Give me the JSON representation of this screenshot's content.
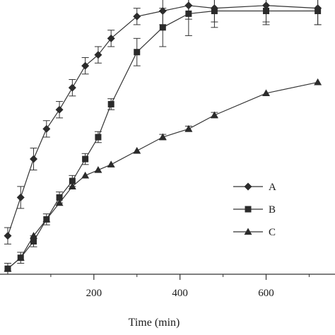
{
  "chart_data": {
    "type": "line",
    "title": "",
    "xlabel": "Time (min)",
    "ylabel": "",
    "xlim": [
      -18,
      760
    ],
    "ylim": [
      0,
      100
    ],
    "grid": false,
    "legend_position": "center-right",
    "x_ticks": [
      200,
      400,
      600
    ],
    "x_tick_labels": [
      "200",
      "400",
      "600"
    ],
    "series": [
      {
        "name": "A",
        "marker": "diamond",
        "x": [
          0,
          30,
          60,
          90,
          120,
          150,
          180,
          210,
          240,
          300,
          360,
          420,
          480,
          600,
          720
        ],
        "y": [
          14,
          28,
          42,
          53,
          60,
          68,
          76,
          80,
          86,
          94,
          96,
          98,
          97,
          98,
          97
        ],
        "err": [
          3,
          4,
          4,
          3,
          3,
          3,
          3,
          3,
          3,
          3,
          5,
          5,
          5,
          6,
          6
        ]
      },
      {
        "name": "B",
        "marker": "square",
        "x": [
          0,
          30,
          60,
          90,
          120,
          150,
          180,
          210,
          240,
          300,
          360,
          420,
          480,
          600,
          720
        ],
        "y": [
          2,
          6,
          12,
          20,
          28,
          34,
          42,
          50,
          62,
          81,
          90,
          95,
          96,
          96,
          96
        ],
        "err": [
          2,
          2,
          2,
          2,
          2,
          2,
          2,
          2,
          2,
          5,
          7,
          8,
          6,
          5,
          5
        ]
      },
      {
        "name": "C",
        "marker": "triangle",
        "x": [
          0,
          30,
          60,
          90,
          120,
          150,
          180,
          210,
          240,
          300,
          360,
          420,
          480,
          600,
          720
        ],
        "y": [
          2,
          6,
          14,
          20,
          26,
          32,
          36,
          38,
          40,
          45,
          50,
          53,
          58,
          66,
          70
        ],
        "err": [
          0,
          0,
          0,
          0,
          0,
          0,
          0,
          0,
          0,
          0,
          1,
          1,
          1,
          0,
          0
        ]
      }
    ]
  },
  "colors": {
    "line": "#333333",
    "marker": "#2b2b2b",
    "axis": "#333333"
  }
}
